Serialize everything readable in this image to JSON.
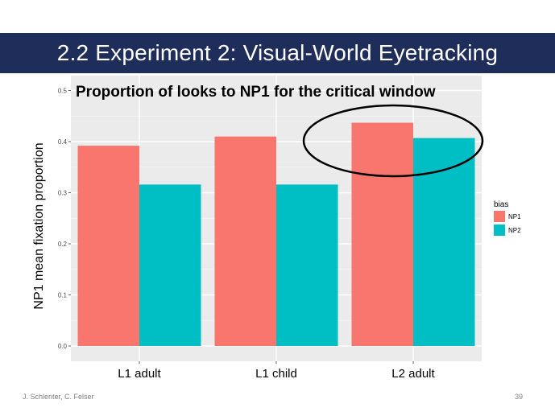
{
  "slide": {
    "title": "2.2 Experiment 2: Visual-World Eyetracking",
    "footer_left": "J. Schlenter, C. Felser",
    "page_number": "39"
  },
  "chart_data": {
    "type": "bar",
    "title": "Proportion of looks to NP1 for the critical window",
    "ylabel": "NP1 mean fixation proportion",
    "xlabel": "",
    "categories": [
      "L1 adult",
      "L1 child",
      "L2 adult"
    ],
    "series": [
      {
        "name": "NP1",
        "color": "#f8766d",
        "values": [
          0.392,
          0.41,
          0.437
        ]
      },
      {
        "name": "NP2",
        "color": "#00bfc4",
        "values": [
          0.316,
          0.316,
          0.407
        ]
      }
    ],
    "ylim": [
      0,
      0.5
    ],
    "yticks": [
      "0.0",
      "0.1",
      "0.2",
      "0.3",
      "0.4",
      "0.5"
    ],
    "legend": {
      "title": "bias",
      "position": "right"
    },
    "annotation": "ellipse-around-L2-adult",
    "grid": true
  }
}
